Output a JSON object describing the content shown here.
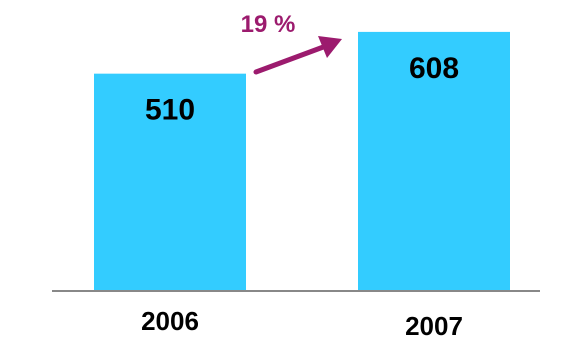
{
  "chart_data": {
    "type": "bar",
    "categories": [
      "2006",
      "2007"
    ],
    "values": [
      510,
      608
    ],
    "growth_label": "19 %",
    "ylim": [
      0,
      650
    ],
    "grid": false
  },
  "colors": {
    "bar": "#33ccff",
    "growth": "#9c1b6e",
    "axis": "#888888",
    "text": "#000000"
  }
}
